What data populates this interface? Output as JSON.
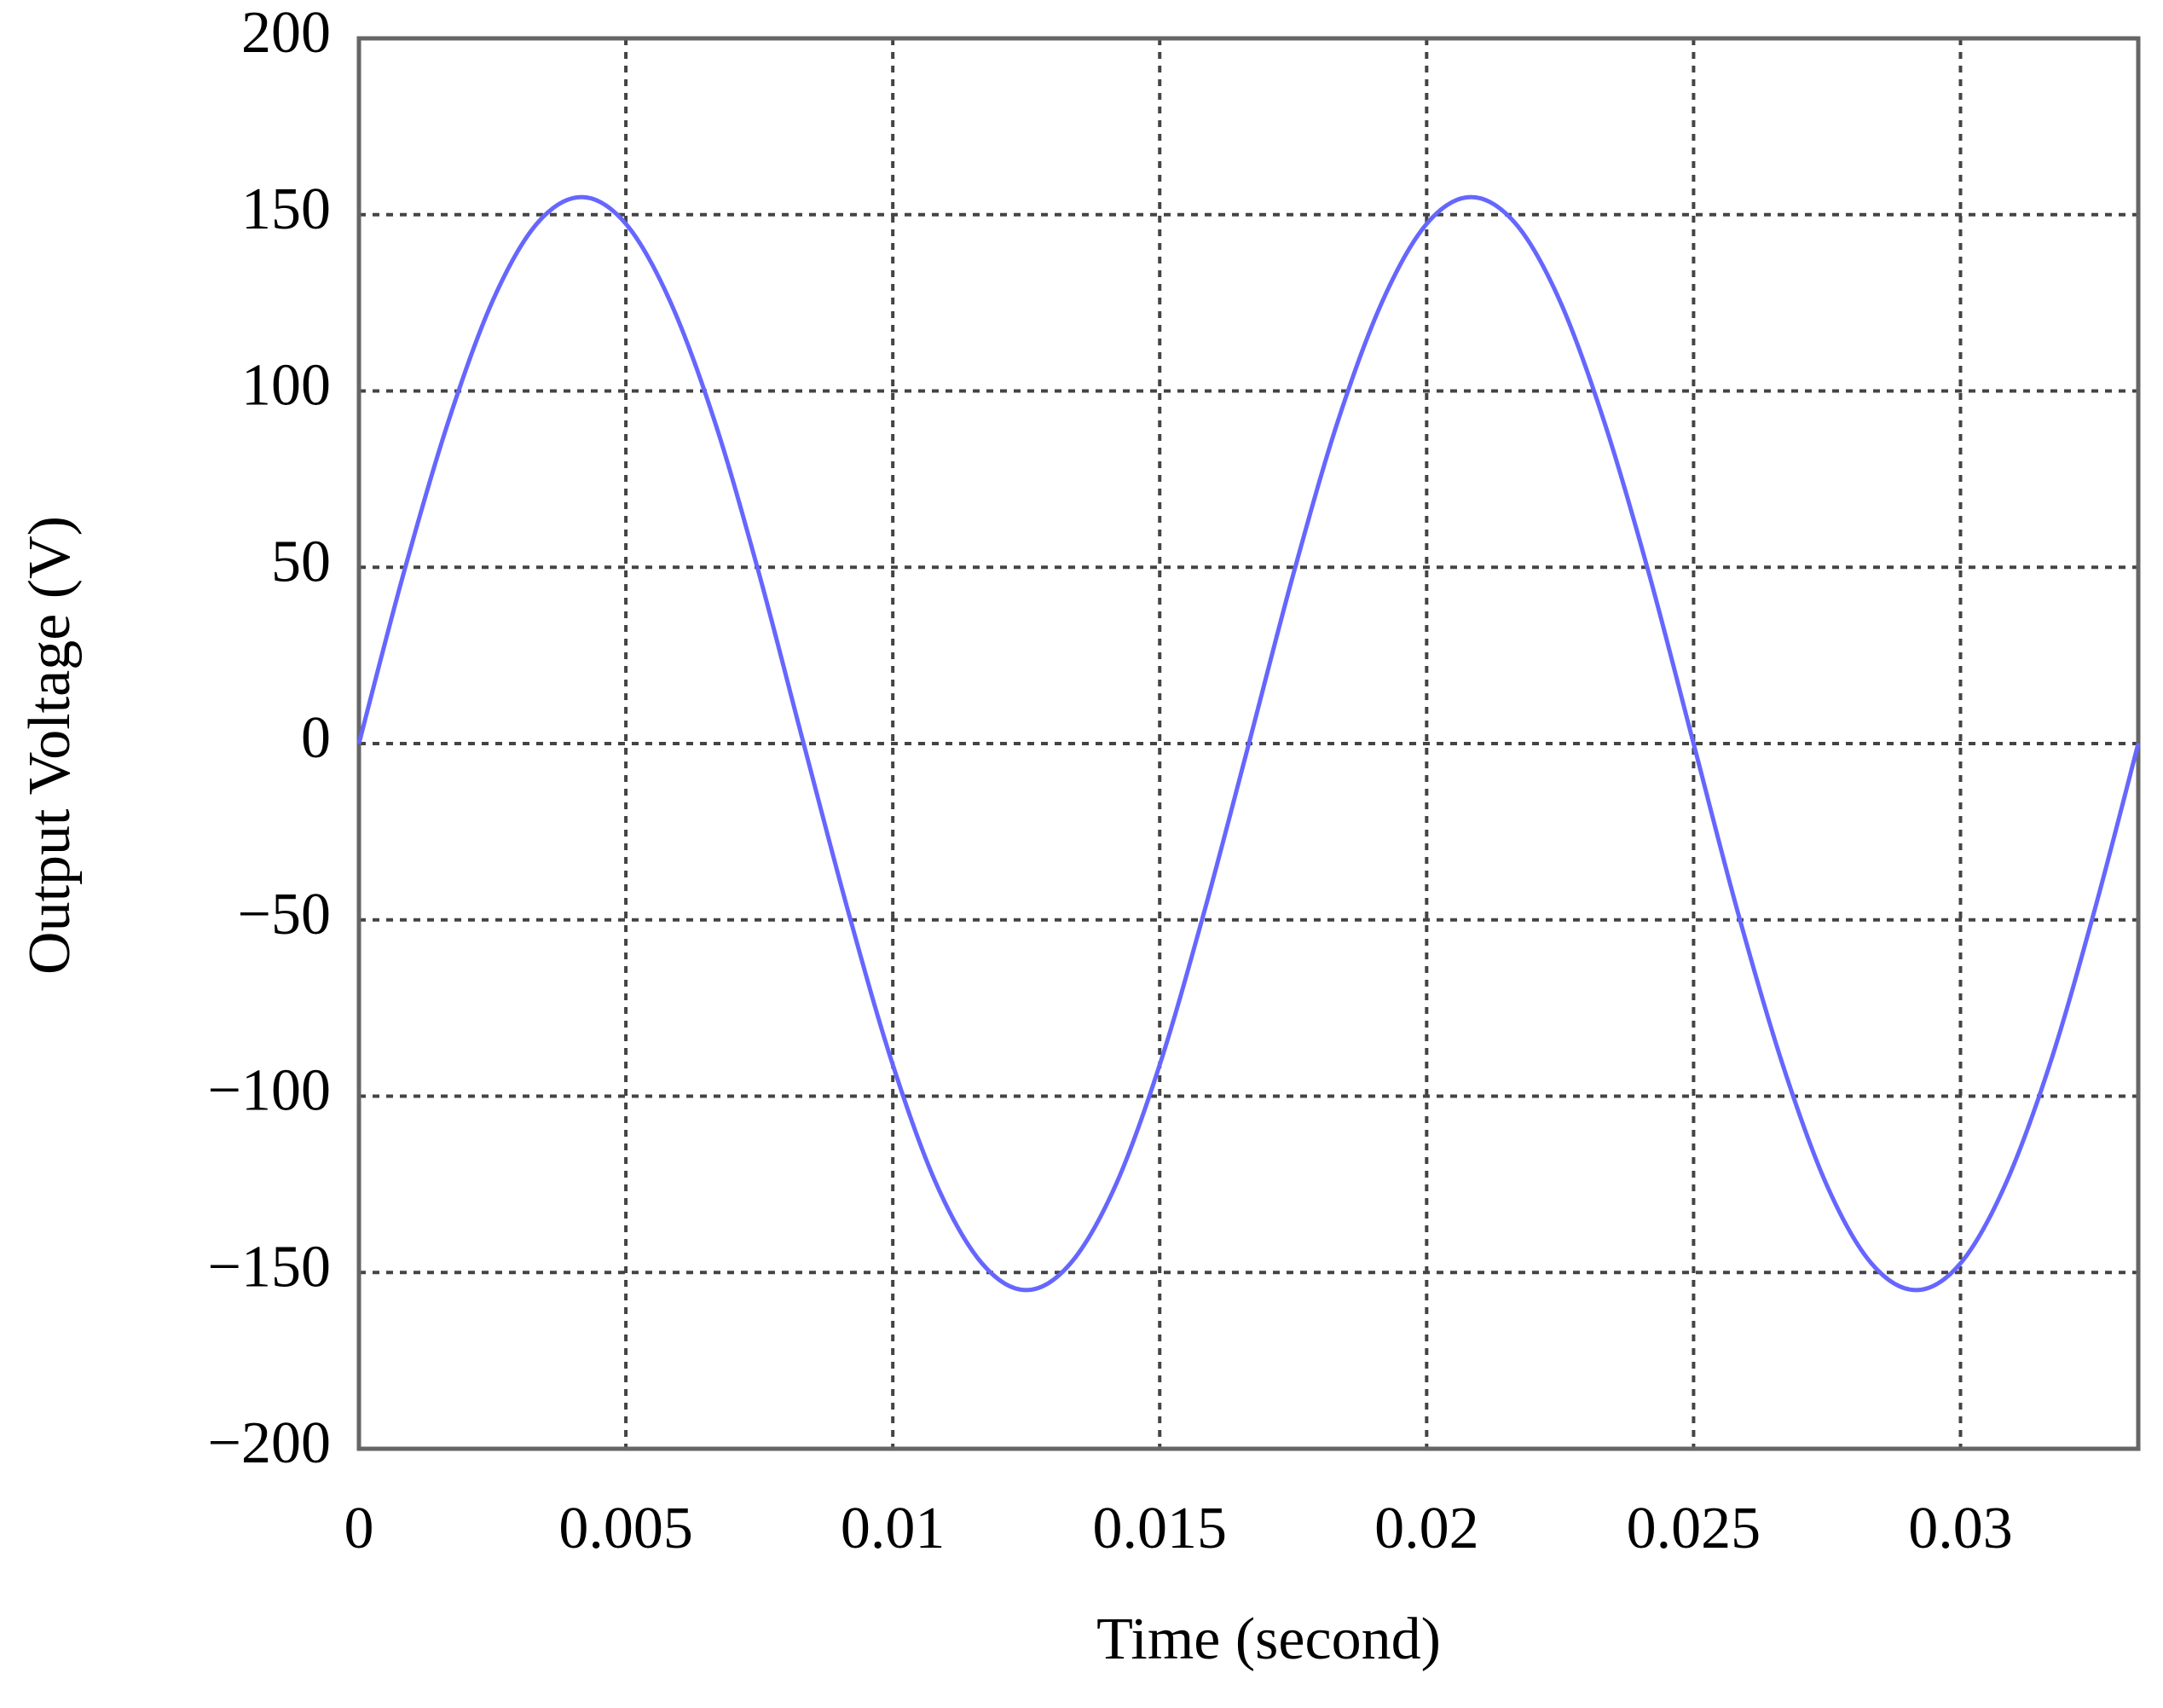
{
  "chart_data": {
    "type": "line",
    "x_label": "Time (second)",
    "y_label": "Output Voltage (V)",
    "x": [
      0,
      0.00083,
      0.00167,
      0.0025,
      0.00333,
      0.00417,
      0.005,
      0.00583,
      0.00667,
      0.0075,
      0.00833,
      0.00917,
      0.01,
      0.01083,
      0.01167,
      0.0125,
      0.01333,
      0.01417,
      0.015,
      0.01583,
      0.01667,
      0.0175,
      0.01833,
      0.01917,
      0.02,
      0.02083,
      0.02167,
      0.0225,
      0.02333,
      0.02417,
      0.025,
      0.02583,
      0.02667,
      0.0275,
      0.02833,
      0.02917,
      0.03,
      0.03083,
      0.03167,
      0.0325,
      0.03333
    ],
    "series": [
      {
        "color": "#6666ff",
        "values": [
          0,
          47.9,
          91.1,
          125.4,
          147.4,
          155,
          147.4,
          125.4,
          91.1,
          47.9,
          0,
          -47.9,
          -91.1,
          -125.4,
          -147.4,
          -155,
          -147.4,
          -125.4,
          -91.1,
          -47.9,
          0,
          47.9,
          91.1,
          125.4,
          147.4,
          155,
          147.4,
          125.4,
          91.1,
          47.9,
          0,
          -47.9,
          -91.1,
          -125.4,
          -147.4,
          -155,
          -147.4,
          -125.4,
          -91.1,
          -47.9,
          0
        ]
      }
    ],
    "xlim": [
      0,
      0.03333
    ],
    "ylim": [
      -200,
      200
    ],
    "xticks": [
      0,
      0.005,
      0.01,
      0.015,
      0.02,
      0.025,
      0.03
    ],
    "yticks": [
      {
        "value": -200,
        "label": "−200"
      },
      {
        "value": -150,
        "label": "−150"
      },
      {
        "value": -100,
        "label": "−100"
      },
      {
        "value": -50,
        "label": "−50"
      },
      0,
      50,
      100,
      150,
      200
    ],
    "grid": true
  }
}
